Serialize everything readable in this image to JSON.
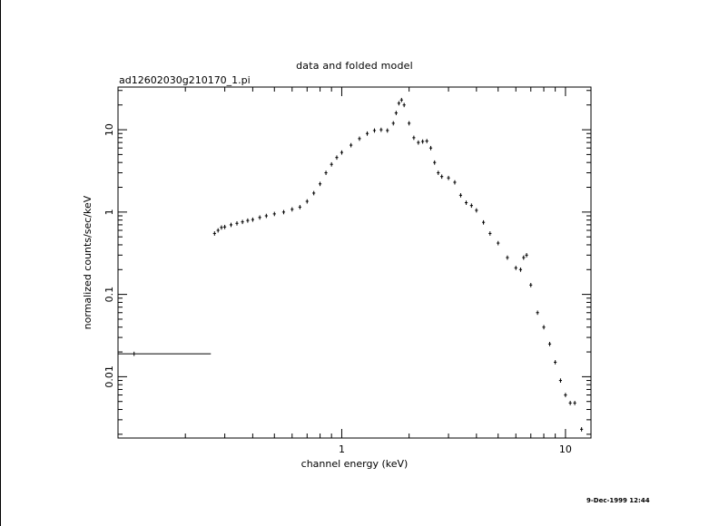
{
  "chart_data": {
    "type": "scatter",
    "title": "data and folded model",
    "subtitle": "ad12602030g210170_1.pi",
    "xlabel": "channel energy (keV)",
    "ylabel": "normalized counts/sec/keV",
    "x_scale": "log",
    "y_scale": "log",
    "xlim": [
      0.1,
      13
    ],
    "ylim": [
      0.0018,
      33
    ],
    "x_ticks": [
      {
        "value": 1,
        "label": "1"
      },
      {
        "value": 10,
        "label": "10"
      }
    ],
    "y_ticks": [
      {
        "value": 0.01,
        "label": "0.01"
      },
      {
        "value": 0.1,
        "label": "0.1"
      },
      {
        "value": 1,
        "label": "1"
      },
      {
        "value": 10,
        "label": "10"
      }
    ],
    "grid": false,
    "legend": "none",
    "series": [
      {
        "points": [
          {
            "x": 0.118,
            "y": 0.019,
            "xerr": [
              0.1,
              0.26
            ]
          },
          {
            "x": 0.27,
            "y": 0.55
          },
          {
            "x": 0.28,
            "y": 0.6
          },
          {
            "x": 0.29,
            "y": 0.65
          },
          {
            "x": 0.3,
            "y": 0.66
          },
          {
            "x": 0.32,
            "y": 0.7
          },
          {
            "x": 0.34,
            "y": 0.73
          },
          {
            "x": 0.36,
            "y": 0.76
          },
          {
            "x": 0.38,
            "y": 0.79
          },
          {
            "x": 0.4,
            "y": 0.81
          },
          {
            "x": 0.43,
            "y": 0.86
          },
          {
            "x": 0.46,
            "y": 0.9
          },
          {
            "x": 0.5,
            "y": 0.95
          },
          {
            "x": 0.55,
            "y": 1.0
          },
          {
            "x": 0.6,
            "y": 1.08
          },
          {
            "x": 0.65,
            "y": 1.15
          },
          {
            "x": 0.7,
            "y": 1.35
          },
          {
            "x": 0.75,
            "y": 1.7
          },
          {
            "x": 0.8,
            "y": 2.2
          },
          {
            "x": 0.85,
            "y": 3.0
          },
          {
            "x": 0.9,
            "y": 3.8
          },
          {
            "x": 0.95,
            "y": 4.6
          },
          {
            "x": 1.0,
            "y": 5.3
          },
          {
            "x": 1.1,
            "y": 6.5
          },
          {
            "x": 1.2,
            "y": 7.8
          },
          {
            "x": 1.3,
            "y": 9.0
          },
          {
            "x": 1.4,
            "y": 9.8
          },
          {
            "x": 1.5,
            "y": 10.0
          },
          {
            "x": 1.6,
            "y": 9.8
          },
          {
            "x": 1.7,
            "y": 12.0
          },
          {
            "x": 1.75,
            "y": 16.0
          },
          {
            "x": 1.8,
            "y": 21.0
          },
          {
            "x": 1.85,
            "y": 23.0
          },
          {
            "x": 1.9,
            "y": 20.0
          },
          {
            "x": 2.0,
            "y": 12.0
          },
          {
            "x": 2.1,
            "y": 8.0
          },
          {
            "x": 2.2,
            "y": 7.0
          },
          {
            "x": 2.3,
            "y": 7.2
          },
          {
            "x": 2.4,
            "y": 7.3
          },
          {
            "x": 2.5,
            "y": 6.0
          },
          {
            "x": 2.6,
            "y": 4.0
          },
          {
            "x": 2.7,
            "y": 3.0
          },
          {
            "x": 2.8,
            "y": 2.7
          },
          {
            "x": 3.0,
            "y": 2.6
          },
          {
            "x": 3.2,
            "y": 2.3
          },
          {
            "x": 3.4,
            "y": 1.6
          },
          {
            "x": 3.6,
            "y": 1.3
          },
          {
            "x": 3.8,
            "y": 1.2
          },
          {
            "x": 4.0,
            "y": 1.05
          },
          {
            "x": 4.3,
            "y": 0.75
          },
          {
            "x": 4.6,
            "y": 0.55
          },
          {
            "x": 5.0,
            "y": 0.42
          },
          {
            "x": 5.5,
            "y": 0.28
          },
          {
            "x": 6.0,
            "y": 0.21
          },
          {
            "x": 6.3,
            "y": 0.2
          },
          {
            "x": 6.5,
            "y": 0.28
          },
          {
            "x": 6.7,
            "y": 0.3
          },
          {
            "x": 7.0,
            "y": 0.13
          },
          {
            "x": 7.5,
            "y": 0.06
          },
          {
            "x": 8.0,
            "y": 0.04
          },
          {
            "x": 8.5,
            "y": 0.025
          },
          {
            "x": 9.0,
            "y": 0.015
          },
          {
            "x": 9.5,
            "y": 0.009
          },
          {
            "x": 10.0,
            "y": 0.006
          },
          {
            "x": 10.5,
            "y": 0.0048
          },
          {
            "x": 11.0,
            "y": 0.0048
          },
          {
            "x": 11.8,
            "y": 0.0023
          }
        ]
      }
    ]
  },
  "timestamp": "9-Dec-1999 12:44"
}
